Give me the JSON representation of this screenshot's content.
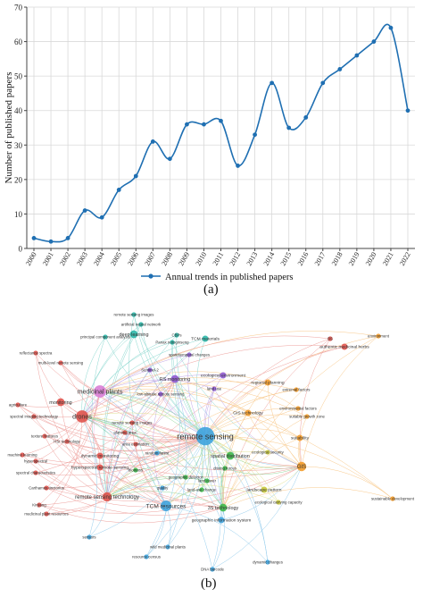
{
  "figure": {
    "panel_a_label": "(a)",
    "panel_b_label": "(b)"
  },
  "chart_data": [
    {
      "type": "line",
      "title": "",
      "xlabel": "",
      "ylabel": "Number of published papers",
      "x": [
        "2000",
        "2001",
        "2002",
        "2003",
        "2004",
        "2005",
        "2006",
        "2007",
        "2008",
        "2009",
        "2010",
        "2011",
        "2012",
        "2013",
        "2014",
        "2015",
        "2016",
        "2017",
        "2018",
        "2019",
        "2020",
        "2021",
        "2022"
      ],
      "ylim": [
        0,
        70
      ],
      "yticks": [
        0,
        10,
        20,
        30,
        40,
        50,
        60,
        70
      ],
      "grid": true,
      "legend_position": "bottom-center",
      "series": [
        {
          "name": "Annual trends in published papers",
          "color": "#1f6fb2",
          "values": [
            3,
            2,
            3,
            11,
            9,
            17,
            21,
            31,
            26,
            36,
            36,
            37,
            24,
            33,
            48,
            35,
            38,
            48,
            52,
            56,
            60,
            64,
            40
          ]
        }
      ]
    },
    {
      "type": "network",
      "title": "",
      "nodes": [
        {
          "label": "remote sensing",
          "cluster": "blue",
          "weight": 10
        },
        {
          "label": "medicinal plants",
          "cluster": "pink",
          "weight": 6
        },
        {
          "label": "drones",
          "cluster": "red",
          "weight": 6
        },
        {
          "label": "TCM resources",
          "cluster": "blue",
          "weight": 5
        },
        {
          "label": "remote sensing technology",
          "cluster": "red",
          "weight": 4
        },
        {
          "label": "GIS",
          "cluster": "orange",
          "weight": 4
        },
        {
          "label": "deep learning",
          "cluster": "teal",
          "weight": 3
        },
        {
          "label": "RS monitoring",
          "cluster": "purple",
          "weight": 3
        },
        {
          "label": "3S technology",
          "cluster": "green",
          "weight": 3
        },
        {
          "label": "monitoring",
          "cluster": "red",
          "weight": 3
        },
        {
          "label": "spatial distribution",
          "cluster": "green",
          "weight": 3
        },
        {
          "label": "ecological environment",
          "cluster": "purple",
          "weight": 2
        },
        {
          "label": "regional planning",
          "cluster": "orange",
          "weight": 2
        },
        {
          "label": "authentic medicinal herbs",
          "cluster": "red",
          "weight": 2
        },
        {
          "label": "dynamic monitoring",
          "cluster": "red",
          "weight": 2
        },
        {
          "label": "hyperspectral remote sensing",
          "cluster": "red",
          "weight": 2
        },
        {
          "label": "landscape pattern",
          "cluster": "yellow",
          "weight": 2
        },
        {
          "label": "geographic information system",
          "cluster": "blue",
          "weight": 2
        },
        {
          "label": "GIS technology",
          "cluster": "orange",
          "weight": 2
        },
        {
          "label": "TCM materials",
          "cluster": "teal",
          "weight": 2
        },
        {
          "label": "suitability",
          "cluster": "orange",
          "weight": 2
        },
        {
          "label": "remote sensing images",
          "cluster": "teal",
          "weight": 1
        },
        {
          "label": "artificial neural network",
          "cluster": "teal",
          "weight": 1
        },
        {
          "label": "principal component analysis",
          "cluster": "teal",
          "weight": 1
        },
        {
          "label": "reflectance spectra",
          "cluster": "red",
          "weight": 1
        },
        {
          "label": "multi-level remote sensing",
          "cluster": "red",
          "weight": 1
        },
        {
          "label": "CBPs",
          "cluster": "teal",
          "weight": 1
        },
        {
          "label": "Panax notoginseng",
          "cluster": "teal",
          "weight": 1
        },
        {
          "label": "spatiotemporal changes",
          "cluster": "purple",
          "weight": 1
        },
        {
          "label": "environment",
          "cluster": "orange",
          "weight": 1
        },
        {
          "label": "BS",
          "cluster": "red",
          "weight": 1
        },
        {
          "label": "Sentinel-2",
          "cluster": "purple",
          "weight": 1
        },
        {
          "label": "land use",
          "cluster": "purple",
          "weight": 1
        },
        {
          "label": "low-altitude remote sensing",
          "cluster": "purple",
          "weight": 1
        },
        {
          "label": "extremal factors",
          "cluster": "orange",
          "weight": 1
        },
        {
          "label": "environmental factors",
          "cluster": "orange",
          "weight": 1
        },
        {
          "label": "suitable growth zone",
          "cluster": "orange",
          "weight": 1
        },
        {
          "label": "agriculture",
          "cluster": "red",
          "weight": 1
        },
        {
          "label": "spectral imaging technology",
          "cluster": "red",
          "weight": 1
        },
        {
          "label": "remote sensing images",
          "cluster": "red",
          "weight": 1
        },
        {
          "label": "texture features",
          "cluster": "red",
          "weight": 1
        },
        {
          "label": "planting area",
          "cluster": "red",
          "weight": 1
        },
        {
          "label": "area estimation",
          "cluster": "red",
          "weight": 1
        },
        {
          "label": "HSI technology",
          "cluster": "red",
          "weight": 1
        },
        {
          "label": "random forest",
          "cluster": "blue",
          "weight": 1
        },
        {
          "label": "machine learning",
          "cluster": "red",
          "weight": 1
        },
        {
          "label": "hyperspectral",
          "cluster": "red",
          "weight": 1
        },
        {
          "label": "spectral characteristics",
          "cluster": "red",
          "weight": 1
        },
        {
          "label": "Carthamus tinctorius",
          "cluster": "red",
          "weight": 1
        },
        {
          "label": "Kinjiang",
          "cluster": "red",
          "weight": 1
        },
        {
          "label": "medicinal plant resources",
          "cluster": "red",
          "weight": 1
        },
        {
          "label": "biomass",
          "cluster": "green",
          "weight": 1
        },
        {
          "label": "driving forces",
          "cluster": "green",
          "weight": 1
        },
        {
          "label": "land-use change",
          "cluster": "green",
          "weight": 1
        },
        {
          "label": "quality",
          "cluster": "blue",
          "weight": 1
        },
        {
          "label": "geographic detector",
          "cluster": "green",
          "weight": 1
        },
        {
          "label": "land cover",
          "cluster": "green",
          "weight": 1
        },
        {
          "label": "ecological carrying capacity",
          "cluster": "yellow",
          "weight": 1
        },
        {
          "label": "ecological security",
          "cluster": "yellow",
          "weight": 1
        },
        {
          "label": "sustainable development",
          "cluster": "orange",
          "weight": 1
        },
        {
          "label": "wild medicinal plants",
          "cluster": "blue",
          "weight": 1
        },
        {
          "label": "resource census",
          "cluster": "blue",
          "weight": 1
        },
        {
          "label": "DNA barcode",
          "cluster": "blue",
          "weight": 1
        },
        {
          "label": "dynamic changes",
          "cluster": "blue",
          "weight": 1
        },
        {
          "label": "sensors",
          "cluster": "blue",
          "weight": 1
        }
      ]
    }
  ],
  "colors": {
    "line": "#1f6fb2",
    "grid": "#d9d9d9",
    "axis": "#444444",
    "blue": "#3ea3dd",
    "red": "#e0534c",
    "pink": "#d97ed6",
    "teal": "#2bb7a8",
    "purple": "#8f5bd1",
    "green": "#3db84a",
    "orange": "#f39c2b",
    "yellow": "#c9c93b"
  }
}
